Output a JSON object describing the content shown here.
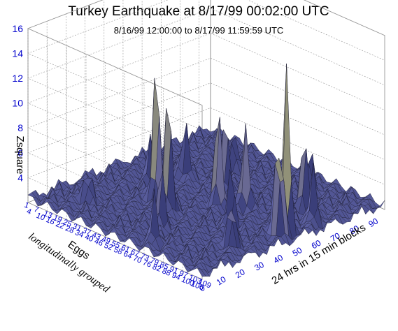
{
  "chart_data": {
    "type": "surface",
    "title": "Turkey Earthquake at 8/17/99 00:02:00 UTC",
    "subtitle": "8/16/99 12:00:00 to 8/17/99 11:59:59 UTC",
    "zlabel": "Zsquare",
    "xlabel": "24 hrs in 15 min blocks",
    "ylabel_line1": "Eggs",
    "ylabel_line2": "longitudinally grouped",
    "zticks": [
      4,
      6,
      8,
      10,
      12,
      14,
      16
    ],
    "zlim": [
      2,
      16
    ],
    "xticks": [
      0,
      10,
      20,
      30,
      40,
      50,
      60,
      70,
      80,
      90
    ],
    "xlim": [
      0,
      96
    ],
    "yticks": [
      1,
      4,
      7,
      10,
      13,
      16,
      19,
      22,
      25,
      28,
      31,
      34,
      37,
      40,
      43,
      46,
      49,
      52,
      55,
      58,
      61,
      64,
      67,
      70,
      73,
      76,
      79,
      82,
      85,
      88,
      91,
      94,
      97,
      100,
      103,
      106,
      109
    ],
    "ylim": [
      1,
      109
    ],
    "grid": true,
    "surface_color": "#5a5e9c",
    "peak_color": "#e8e870",
    "peaks": [
      {
        "x": 52,
        "y": 100,
        "z": 15.5
      },
      {
        "x": 47,
        "y": 101,
        "z": 12.5
      },
      {
        "x": 36,
        "y": 38,
        "z": 13
      },
      {
        "x": 32,
        "y": 50,
        "z": 12
      },
      {
        "x": 50,
        "y": 60,
        "z": 10
      },
      {
        "x": 56,
        "y": 70,
        "z": 9
      },
      {
        "x": 70,
        "y": 90,
        "z": 8.5
      },
      {
        "x": 62,
        "y": 50,
        "z": 8
      },
      {
        "x": 20,
        "y": 60,
        "z": 7
      },
      {
        "x": 40,
        "y": 80,
        "z": 7
      },
      {
        "x": 58,
        "y": 30,
        "z": 7
      },
      {
        "x": 8,
        "y": 70,
        "z": 6
      },
      {
        "x": 75,
        "y": 40,
        "z": 6
      },
      {
        "x": 85,
        "y": 75,
        "z": 6
      },
      {
        "x": 27,
        "y": 95,
        "z": 6.5
      },
      {
        "x": 15,
        "y": 20,
        "z": 5.5
      },
      {
        "x": 44,
        "y": 25,
        "z": 6
      },
      {
        "x": 66,
        "y": 100,
        "z": 6.5
      }
    ]
  }
}
